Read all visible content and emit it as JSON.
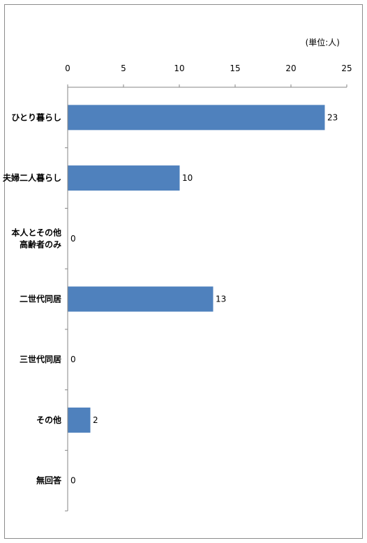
{
  "chart_data": {
    "type": "bar",
    "orientation": "horizontal",
    "unit_label": "(単位:人)",
    "title": "",
    "xlabel": "",
    "ylabel": "",
    "categories": [
      [
        "ひとり暮らし"
      ],
      [
        "夫婦二人暮らし"
      ],
      [
        "本人とその他",
        "高齢者のみ"
      ],
      [
        "二世代同居"
      ],
      [
        "三世代同居"
      ],
      [
        "その他"
      ],
      [
        "無回答"
      ]
    ],
    "values": [
      23,
      10,
      0,
      13,
      0,
      2,
      0
    ],
    "value_labels": [
      "23",
      "10",
      "0",
      "13",
      "0",
      "2",
      "0"
    ],
    "xlim": [
      0,
      25
    ],
    "ticks": [
      0,
      5,
      10,
      15,
      20,
      25
    ],
    "tick_labels": [
      "0",
      "5",
      "10",
      "15",
      "20",
      "25"
    ],
    "grid": false,
    "axis_position": "top",
    "bar_color": "#4F81BD"
  }
}
